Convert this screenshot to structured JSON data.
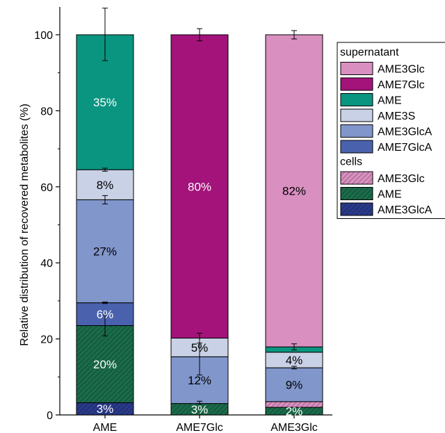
{
  "chart_data": {
    "type": "bar",
    "stacked": true,
    "categories": [
      "AME",
      "AME7Glc",
      "AME3Glc"
    ],
    "ylabel": "Relative distribution of recovered metabolites (%)",
    "ylim": [
      0,
      100
    ],
    "yticks": [
      0,
      20,
      40,
      60,
      80,
      100
    ],
    "legend_position": "right",
    "legend_groups": [
      {
        "title": "supernatant",
        "entries": [
          {
            "label": "AME3Glc",
            "color": "#d98fc0",
            "hatch": false
          },
          {
            "label": "AME7Glc",
            "color": "#a3137a",
            "hatch": false
          },
          {
            "label": "AME",
            "color": "#0a9580",
            "hatch": false
          },
          {
            "label": "AME3S",
            "color": "#c9d1e6",
            "hatch": false
          },
          {
            "label": "AME3GlcA",
            "color": "#8196cb",
            "hatch": false
          },
          {
            "label": "AME7GlcA",
            "color": "#4a62ad",
            "hatch": false
          }
        ]
      },
      {
        "title": "cells",
        "entries": [
          {
            "label": "AME3Glc",
            "color": "#d98fc0",
            "hatch": true
          },
          {
            "label": "AME",
            "color": "#1a6b4a",
            "hatch": true
          },
          {
            "label": "AME3GlcA",
            "color": "#2a3a8a",
            "hatch": true
          }
        ]
      }
    ],
    "stacks": [
      {
        "category": "AME",
        "segments": [
          {
            "series": "cells AME3GlcA",
            "value": 3.2,
            "color": "#2a3a8a",
            "hatch": true,
            "label": "3%",
            "label_color": "#ffffff"
          },
          {
            "series": "cells AME",
            "value": 20.3,
            "color": "#1a6b4a",
            "hatch": true,
            "label": "20%",
            "label_color": "#ffffff"
          },
          {
            "series": "supernatant AME7GlcA",
            "value": 6.0,
            "color": "#4a62ad",
            "hatch": false,
            "label": "6%",
            "label_color": "#ffffff"
          },
          {
            "series": "supernatant AME3GlcA",
            "value": 27.1,
            "color": "#8196cb",
            "hatch": false,
            "label": "27%",
            "label_color": "#000000"
          },
          {
            "series": "supernatant AME3S",
            "value": 7.9,
            "color": "#c9d1e6",
            "hatch": false,
            "label": "8%",
            "label_color": "#000000"
          },
          {
            "series": "supernatant AME",
            "value": 35.5,
            "color": "#0a9580",
            "hatch": false,
            "label": "35%",
            "label_color": "#ffffff"
          }
        ]
      },
      {
        "category": "AME7Glc",
        "segments": [
          {
            "series": "cells AME",
            "value": 3.0,
            "color": "#1a6b4a",
            "hatch": true,
            "label": "3%",
            "label_color": "#ffffff"
          },
          {
            "series": "supernatant AME3GlcA",
            "value": 12.3,
            "color": "#8196cb",
            "hatch": false,
            "label": "12%",
            "label_color": "#000000"
          },
          {
            "series": "supernatant AME3S",
            "value": 4.9,
            "color": "#c9d1e6",
            "hatch": false,
            "label": "5%",
            "label_color": "#000000"
          },
          {
            "series": "supernatant AME7Glc",
            "value": 79.8,
            "color": "#a3137a",
            "hatch": false,
            "label": "80%",
            "label_color": "#ffffff"
          }
        ]
      },
      {
        "category": "AME3Glc",
        "segments": [
          {
            "series": "cells AME",
            "value": 2.0,
            "color": "#1a6b4a",
            "hatch": true,
            "label": "2%",
            "label_color": "#ffffff"
          },
          {
            "series": "cells AME3Glc",
            "value": 1.5,
            "color": "#d98fc0",
            "hatch": true,
            "label": "",
            "label_color": "#000000"
          },
          {
            "series": "supernatant AME3GlcA",
            "value": 8.9,
            "color": "#8196cb",
            "hatch": false,
            "label": "9%",
            "label_color": "#000000"
          },
          {
            "series": "supernatant AME3S",
            "value": 4.1,
            "color": "#c9d1e6",
            "hatch": false,
            "label": "4%",
            "label_color": "#000000"
          },
          {
            "series": "supernatant AME",
            "value": 1.4,
            "color": "#0a9580",
            "hatch": false,
            "label": "",
            "label_color": "#ffffff"
          },
          {
            "series": "supernatant AME3Glc",
            "value": 82.1,
            "color": "#d98fc0",
            "hatch": false,
            "label": "82%",
            "label_color": "#000000"
          }
        ]
      }
    ],
    "error_bars": [
      {
        "category": "AME",
        "center": 100.0,
        "low": 93.2,
        "high": 107.0
      },
      {
        "category": "AME",
        "center": 64.5,
        "low": 64.1,
        "high": 64.9
      },
      {
        "category": "AME",
        "center": 56.6,
        "low": 55.5,
        "high": 57.7
      },
      {
        "category": "AME",
        "center": 29.5,
        "low": 29.3,
        "high": 29.7
      },
      {
        "category": "AME",
        "center": 23.5,
        "low": 20.8,
        "high": 26.3
      },
      {
        "category": "AME7Glc",
        "center": 100.0,
        "low": 98.4,
        "high": 101.6
      },
      {
        "category": "AME7Glc",
        "center": 20.2,
        "low": 18.9,
        "high": 21.5
      },
      {
        "category": "AME7Glc",
        "center": 15.3,
        "low": 10.5,
        "high": 20.2
      },
      {
        "category": "AME7Glc",
        "center": 3.0,
        "low": 2.9,
        "high": 3.6
      },
      {
        "category": "AME3Glc",
        "center": 100.0,
        "low": 98.9,
        "high": 101.1
      },
      {
        "category": "AME3Glc",
        "center": 17.9,
        "low": 17.1,
        "high": 18.7
      },
      {
        "category": "AME3Glc",
        "center": 12.4,
        "low": 12.1,
        "high": 12.8
      }
    ]
  }
}
